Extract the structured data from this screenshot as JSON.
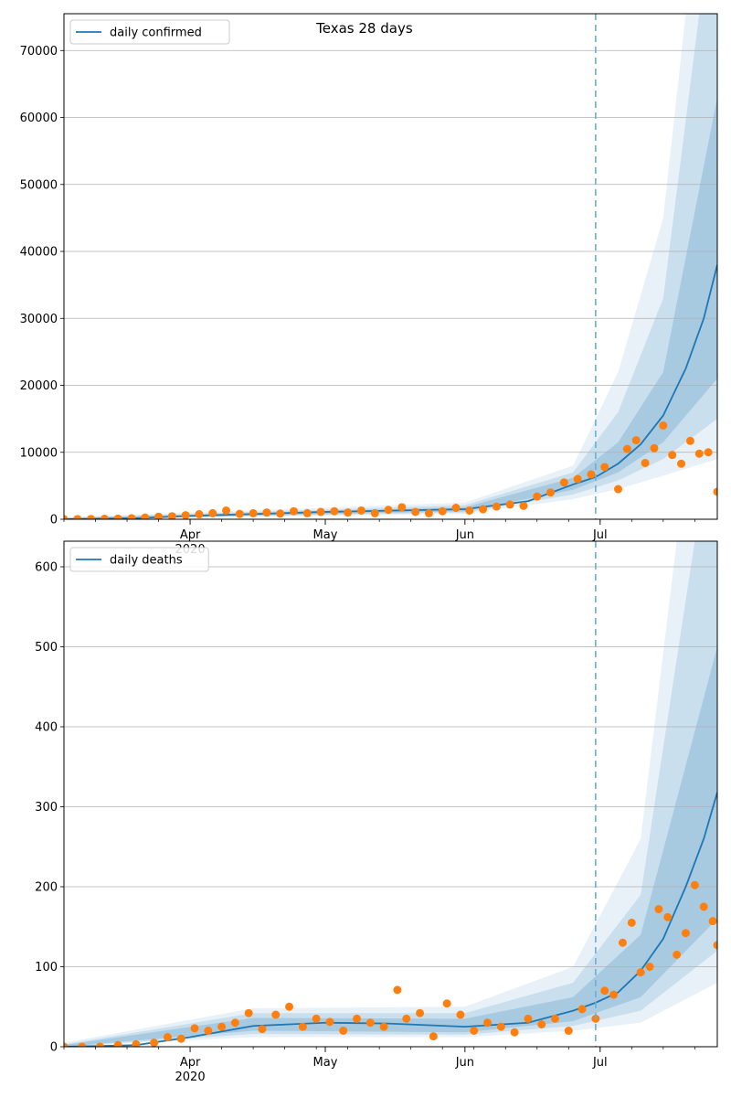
{
  "chart_data": [
    {
      "type": "line",
      "title": "Texas 28 days",
      "series": [
        {
          "name": "daily confirmed",
          "kind": "line",
          "color": "#1f77b4"
        },
        {
          "kind": "scatter",
          "color": "#ff7f0e"
        }
      ],
      "x_axis": {
        "range": [
          "2020-03-04",
          "2020-07-27"
        ],
        "major_ticks": [
          {
            "date": "2020-04-01",
            "label": "Apr",
            "sublabel": "2020"
          },
          {
            "date": "2020-05-01",
            "label": "May"
          },
          {
            "date": "2020-06-01",
            "label": "Jun"
          },
          {
            "date": "2020-07-01",
            "label": "Jul"
          }
        ]
      },
      "y_axis": {
        "ylim": [
          0,
          75500
        ],
        "ticks": [
          0,
          10000,
          20000,
          30000,
          40000,
          50000,
          60000,
          70000
        ],
        "tick_labels": [
          "0",
          "10000",
          "20000",
          "30000",
          "40000",
          "50000",
          "60000",
          "70000"
        ],
        "grid": true
      },
      "forecast_start": "2020-06-30",
      "legend": "top-left",
      "fit_line": [
        {
          "x": "2020-03-04",
          "y": 0
        },
        {
          "x": "2020-03-20",
          "y": 150
        },
        {
          "x": "2020-04-01",
          "y": 500
        },
        {
          "x": "2020-05-01",
          "y": 1100
        },
        {
          "x": "2020-06-01",
          "y": 1500
        },
        {
          "x": "2020-06-15",
          "y": 2700
        },
        {
          "x": "2020-06-25",
          "y": 5200
        },
        {
          "x": "2020-06-30",
          "y": 6300
        },
        {
          "x": "2020-07-05",
          "y": 8300
        },
        {
          "x": "2020-07-10",
          "y": 11200
        },
        {
          "x": "2020-07-15",
          "y": 15500
        },
        {
          "x": "2020-07-20",
          "y": 22500
        },
        {
          "x": "2020-07-24",
          "y": 30000
        },
        {
          "x": "2020-07-27",
          "y": 38000
        }
      ],
      "bands": [
        {
          "level": "outer",
          "lower": [
            {
              "x": "2020-03-04",
              "y": 0
            },
            {
              "x": "2020-06-01",
              "y": 800
            },
            {
              "x": "2020-06-25",
              "y": 3000
            },
            {
              "x": "2020-07-05",
              "y": 4500
            },
            {
              "x": "2020-07-15",
              "y": 6500
            },
            {
              "x": "2020-07-27",
              "y": 9000
            }
          ],
          "upper": [
            {
              "x": "2020-03-04",
              "y": 300
            },
            {
              "x": "2020-06-01",
              "y": 2500
            },
            {
              "x": "2020-06-25",
              "y": 8000
            },
            {
              "x": "2020-07-05",
              "y": 22000
            },
            {
              "x": "2020-07-15",
              "y": 45000
            },
            {
              "x": "2020-07-20",
              "y": 75500
            },
            {
              "x": "2020-07-27",
              "y": 75500
            }
          ]
        },
        {
          "level": "middle",
          "lower": [
            {
              "x": "2020-03-04",
              "y": 0
            },
            {
              "x": "2020-06-01",
              "y": 1000
            },
            {
              "x": "2020-06-25",
              "y": 3700
            },
            {
              "x": "2020-07-05",
              "y": 5800
            },
            {
              "x": "2020-07-15",
              "y": 9000
            },
            {
              "x": "2020-07-27",
              "y": 15000
            }
          ],
          "upper": [
            {
              "x": "2020-03-04",
              "y": 220
            },
            {
              "x": "2020-06-01",
              "y": 2100
            },
            {
              "x": "2020-06-25",
              "y": 7000
            },
            {
              "x": "2020-07-05",
              "y": 16000
            },
            {
              "x": "2020-07-15",
              "y": 33000
            },
            {
              "x": "2020-07-23",
              "y": 75500
            },
            {
              "x": "2020-07-27",
              "y": 75500
            }
          ]
        },
        {
          "level": "inner",
          "lower": [
            {
              "x": "2020-03-04",
              "y": 0
            },
            {
              "x": "2020-06-01",
              "y": 1200
            },
            {
              "x": "2020-06-25",
              "y": 4400
            },
            {
              "x": "2020-07-05",
              "y": 7000
            },
            {
              "x": "2020-07-15",
              "y": 11500
            },
            {
              "x": "2020-07-27",
              "y": 21000
            }
          ],
          "upper": [
            {
              "x": "2020-03-04",
              "y": 160
            },
            {
              "x": "2020-06-01",
              "y": 1800
            },
            {
              "x": "2020-06-25",
              "y": 6200
            },
            {
              "x": "2020-07-05",
              "y": 11500
            },
            {
              "x": "2020-07-15",
              "y": 22000
            },
            {
              "x": "2020-07-27",
              "y": 63000
            }
          ]
        }
      ],
      "observed_points": [
        {
          "x": "2020-03-04",
          "y": 10
        },
        {
          "x": "2020-03-07",
          "y": 20
        },
        {
          "x": "2020-03-10",
          "y": 40
        },
        {
          "x": "2020-03-13",
          "y": 60
        },
        {
          "x": "2020-03-16",
          "y": 90
        },
        {
          "x": "2020-03-19",
          "y": 150
        },
        {
          "x": "2020-03-22",
          "y": 250
        },
        {
          "x": "2020-03-25",
          "y": 380
        },
        {
          "x": "2020-03-28",
          "y": 450
        },
        {
          "x": "2020-03-31",
          "y": 600
        },
        {
          "x": "2020-04-03",
          "y": 750
        },
        {
          "x": "2020-04-06",
          "y": 900
        },
        {
          "x": "2020-04-09",
          "y": 1300
        },
        {
          "x": "2020-04-12",
          "y": 800
        },
        {
          "x": "2020-04-15",
          "y": 900
        },
        {
          "x": "2020-04-18",
          "y": 1000
        },
        {
          "x": "2020-04-21",
          "y": 850
        },
        {
          "x": "2020-04-24",
          "y": 1200
        },
        {
          "x": "2020-04-27",
          "y": 900
        },
        {
          "x": "2020-04-30",
          "y": 1100
        },
        {
          "x": "2020-05-03",
          "y": 1200
        },
        {
          "x": "2020-05-06",
          "y": 1000
        },
        {
          "x": "2020-05-09",
          "y": 1300
        },
        {
          "x": "2020-05-12",
          "y": 900
        },
        {
          "x": "2020-05-15",
          "y": 1400
        },
        {
          "x": "2020-05-18",
          "y": 1800
        },
        {
          "x": "2020-05-21",
          "y": 1100
        },
        {
          "x": "2020-05-24",
          "y": 900
        },
        {
          "x": "2020-05-27",
          "y": 1200
        },
        {
          "x": "2020-05-30",
          "y": 1700
        },
        {
          "x": "2020-06-02",
          "y": 1300
        },
        {
          "x": "2020-06-05",
          "y": 1500
        },
        {
          "x": "2020-06-08",
          "y": 1900
        },
        {
          "x": "2020-06-11",
          "y": 2200
        },
        {
          "x": "2020-06-14",
          "y": 2000
        },
        {
          "x": "2020-06-17",
          "y": 3400
        },
        {
          "x": "2020-06-20",
          "y": 4000
        },
        {
          "x": "2020-06-23",
          "y": 5500
        },
        {
          "x": "2020-06-26",
          "y": 6000
        },
        {
          "x": "2020-06-29",
          "y": 6700
        },
        {
          "x": "2020-07-02",
          "y": 7800
        },
        {
          "x": "2020-07-05",
          "y": 4500
        },
        {
          "x": "2020-07-07",
          "y": 10500
        },
        {
          "x": "2020-07-09",
          "y": 11800
        },
        {
          "x": "2020-07-11",
          "y": 8400
        },
        {
          "x": "2020-07-13",
          "y": 10600
        },
        {
          "x": "2020-07-15",
          "y": 14000
        },
        {
          "x": "2020-07-17",
          "y": 9600
        },
        {
          "x": "2020-07-19",
          "y": 8300
        },
        {
          "x": "2020-07-21",
          "y": 11700
        },
        {
          "x": "2020-07-23",
          "y": 9800
        },
        {
          "x": "2020-07-25",
          "y": 10000
        },
        {
          "x": "2020-07-27",
          "y": 4100
        }
      ]
    },
    {
      "type": "line",
      "series": [
        {
          "name": "daily deaths",
          "kind": "line",
          "color": "#1f77b4"
        },
        {
          "kind": "scatter",
          "color": "#ff7f0e"
        }
      ],
      "x_axis": {
        "range": [
          "2020-03-04",
          "2020-07-27"
        ],
        "major_ticks": [
          {
            "date": "2020-04-01",
            "label": "Apr",
            "sublabel": "2020"
          },
          {
            "date": "2020-05-01",
            "label": "May"
          },
          {
            "date": "2020-06-01",
            "label": "Jun"
          },
          {
            "date": "2020-07-01",
            "label": "Jul"
          }
        ]
      },
      "y_axis": {
        "ylim": [
          0,
          632
        ],
        "ticks": [
          0,
          100,
          200,
          300,
          400,
          500,
          600
        ],
        "tick_labels": [
          "0",
          "100",
          "200",
          "300",
          "400",
          "500",
          "600"
        ],
        "grid": true
      },
      "forecast_start": "2020-06-30",
      "legend": "top-left",
      "fit_line": [
        {
          "x": "2020-03-04",
          "y": 0
        },
        {
          "x": "2020-03-20",
          "y": 2
        },
        {
          "x": "2020-04-01",
          "y": 12
        },
        {
          "x": "2020-04-15",
          "y": 26
        },
        {
          "x": "2020-05-01",
          "y": 30
        },
        {
          "x": "2020-05-15",
          "y": 29
        },
        {
          "x": "2020-06-01",
          "y": 25
        },
        {
          "x": "2020-06-15",
          "y": 30
        },
        {
          "x": "2020-06-25",
          "y": 45
        },
        {
          "x": "2020-06-30",
          "y": 55
        },
        {
          "x": "2020-07-05",
          "y": 68
        },
        {
          "x": "2020-07-10",
          "y": 95
        },
        {
          "x": "2020-07-15",
          "y": 135
        },
        {
          "x": "2020-07-20",
          "y": 200
        },
        {
          "x": "2020-07-24",
          "y": 260
        },
        {
          "x": "2020-07-27",
          "y": 318
        }
      ],
      "bands": [
        {
          "level": "outer",
          "lower": [
            {
              "x": "2020-03-04",
              "y": 0
            },
            {
              "x": "2020-04-15",
              "y": 12
            },
            {
              "x": "2020-06-01",
              "y": 12
            },
            {
              "x": "2020-06-25",
              "y": 20
            },
            {
              "x": "2020-07-10",
              "y": 30
            },
            {
              "x": "2020-07-27",
              "y": 80
            }
          ],
          "upper": [
            {
              "x": "2020-03-04",
              "y": 5
            },
            {
              "x": "2020-04-15",
              "y": 48
            },
            {
              "x": "2020-06-01",
              "y": 50
            },
            {
              "x": "2020-06-25",
              "y": 100
            },
            {
              "x": "2020-07-10",
              "y": 260
            },
            {
              "x": "2020-07-18",
              "y": 632
            },
            {
              "x": "2020-07-27",
              "y": 632
            }
          ]
        },
        {
          "level": "middle",
          "lower": [
            {
              "x": "2020-03-04",
              "y": 0
            },
            {
              "x": "2020-04-15",
              "y": 16
            },
            {
              "x": "2020-06-01",
              "y": 15
            },
            {
              "x": "2020-06-25",
              "y": 26
            },
            {
              "x": "2020-07-10",
              "y": 45
            },
            {
              "x": "2020-07-27",
              "y": 120
            }
          ],
          "upper": [
            {
              "x": "2020-03-04",
              "y": 3
            },
            {
              "x": "2020-04-15",
              "y": 42
            },
            {
              "x": "2020-06-01",
              "y": 42
            },
            {
              "x": "2020-06-25",
              "y": 80
            },
            {
              "x": "2020-07-10",
              "y": 190
            },
            {
              "x": "2020-07-22",
              "y": 632
            },
            {
              "x": "2020-07-27",
              "y": 632
            }
          ]
        },
        {
          "level": "inner",
          "lower": [
            {
              "x": "2020-03-04",
              "y": 0
            },
            {
              "x": "2020-04-15",
              "y": 20
            },
            {
              "x": "2020-06-01",
              "y": 18
            },
            {
              "x": "2020-06-25",
              "y": 32
            },
            {
              "x": "2020-07-10",
              "y": 62
            },
            {
              "x": "2020-07-27",
              "y": 160
            }
          ],
          "upper": [
            {
              "x": "2020-03-04",
              "y": 2
            },
            {
              "x": "2020-04-15",
              "y": 36
            },
            {
              "x": "2020-06-01",
              "y": 35
            },
            {
              "x": "2020-06-25",
              "y": 62
            },
            {
              "x": "2020-07-10",
              "y": 140
            },
            {
              "x": "2020-07-27",
              "y": 500
            }
          ]
        }
      ],
      "observed_points": [
        {
          "x": "2020-03-04",
          "y": 0
        },
        {
          "x": "2020-03-08",
          "y": 0
        },
        {
          "x": "2020-03-12",
          "y": 0
        },
        {
          "x": "2020-03-16",
          "y": 2
        },
        {
          "x": "2020-03-20",
          "y": 3
        },
        {
          "x": "2020-03-24",
          "y": 5
        },
        {
          "x": "2020-03-27",
          "y": 12
        },
        {
          "x": "2020-03-30",
          "y": 10
        },
        {
          "x": "2020-04-02",
          "y": 23
        },
        {
          "x": "2020-04-05",
          "y": 20
        },
        {
          "x": "2020-04-08",
          "y": 25
        },
        {
          "x": "2020-04-11",
          "y": 30
        },
        {
          "x": "2020-04-14",
          "y": 42
        },
        {
          "x": "2020-04-17",
          "y": 22
        },
        {
          "x": "2020-04-20",
          "y": 40
        },
        {
          "x": "2020-04-23",
          "y": 50
        },
        {
          "x": "2020-04-26",
          "y": 25
        },
        {
          "x": "2020-04-29",
          "y": 35
        },
        {
          "x": "2020-05-02",
          "y": 31
        },
        {
          "x": "2020-05-05",
          "y": 20
        },
        {
          "x": "2020-05-08",
          "y": 35
        },
        {
          "x": "2020-05-11",
          "y": 30
        },
        {
          "x": "2020-05-14",
          "y": 25
        },
        {
          "x": "2020-05-17",
          "y": 71
        },
        {
          "x": "2020-05-19",
          "y": 35
        },
        {
          "x": "2020-05-22",
          "y": 42
        },
        {
          "x": "2020-05-25",
          "y": 13
        },
        {
          "x": "2020-05-28",
          "y": 54
        },
        {
          "x": "2020-05-31",
          "y": 40
        },
        {
          "x": "2020-06-03",
          "y": 20
        },
        {
          "x": "2020-06-06",
          "y": 30
        },
        {
          "x": "2020-06-09",
          "y": 25
        },
        {
          "x": "2020-06-12",
          "y": 18
        },
        {
          "x": "2020-06-15",
          "y": 35
        },
        {
          "x": "2020-06-18",
          "y": 28
        },
        {
          "x": "2020-06-21",
          "y": 35
        },
        {
          "x": "2020-06-24",
          "y": 20
        },
        {
          "x": "2020-06-27",
          "y": 47
        },
        {
          "x": "2020-06-30",
          "y": 35
        },
        {
          "x": "2020-07-02",
          "y": 70
        },
        {
          "x": "2020-07-04",
          "y": 65
        },
        {
          "x": "2020-07-06",
          "y": 130
        },
        {
          "x": "2020-07-08",
          "y": 155
        },
        {
          "x": "2020-07-10",
          "y": 93
        },
        {
          "x": "2020-07-12",
          "y": 100
        },
        {
          "x": "2020-07-14",
          "y": 172
        },
        {
          "x": "2020-07-16",
          "y": 162
        },
        {
          "x": "2020-07-18",
          "y": 115
        },
        {
          "x": "2020-07-20",
          "y": 142
        },
        {
          "x": "2020-07-22",
          "y": 202
        },
        {
          "x": "2020-07-24",
          "y": 175
        },
        {
          "x": "2020-07-26",
          "y": 157
        },
        {
          "x": "2020-07-27",
          "y": 127
        }
      ]
    }
  ]
}
